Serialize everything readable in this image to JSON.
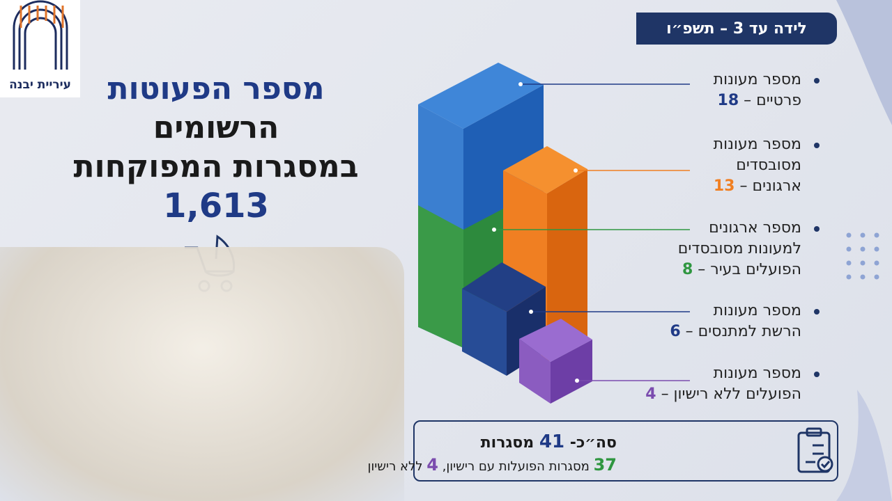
{
  "logo": {
    "text": "עיריית יבנה"
  },
  "badge": "לידה עד 3 – תשפ״ו",
  "headline": {
    "lines": [
      "מספר הפעוטות",
      "הרשומים",
      "במסגרות המפוקחות"
    ],
    "total": "1,613"
  },
  "items": [
    {
      "lines": [
        "מספר מעונות",
        "פרטיים –"
      ],
      "value": 18
    },
    {
      "lines": [
        "מספר מעונות",
        "מסובסדים",
        "ארגונים –"
      ],
      "value": 13
    },
    {
      "lines": [
        "מספר ארגונים",
        "למעונות מסובסדים",
        "הפועלים בעיר –"
      ],
      "value": 8
    },
    {
      "lines": [
        "מספר מעונות",
        "הרשת למתנסים –"
      ],
      "value": 6
    },
    {
      "lines": [
        "מספר מעונות",
        "הפועלים ללא רישיון –"
      ],
      "value": 4
    }
  ],
  "summary": {
    "prefix": "סה״כ-",
    "total": 41,
    "unit": "מסגרות",
    "licensed": 37,
    "licensed_text": "מסגרות הפועלות עם רישיון,",
    "unlicensed": 4,
    "unlicensed_text": "ללא רישיון"
  }
}
